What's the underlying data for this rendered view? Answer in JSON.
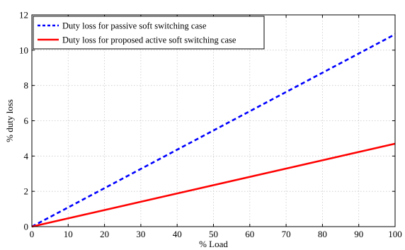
{
  "chart_data": {
    "type": "line",
    "xlabel": "% Load",
    "ylabel": "% duty loss",
    "xlim": [
      0,
      100
    ],
    "ylim": [
      0,
      12
    ],
    "xticks": [
      0,
      10,
      20,
      30,
      40,
      50,
      60,
      70,
      80,
      90,
      100
    ],
    "yticks": [
      0,
      2,
      4,
      6,
      8,
      10,
      12
    ],
    "grid": true,
    "legend_position": "top-left",
    "series": [
      {
        "name": "Duty loss for passive soft switching case",
        "color": "#0000ff",
        "style": "dashed",
        "x": [
          0,
          100
        ],
        "y": [
          0,
          10.9
        ]
      },
      {
        "name": "Duty loss for proposed active soft switching case",
        "color": "#ff0000",
        "style": "solid",
        "x": [
          0,
          100
        ],
        "y": [
          0,
          4.7
        ]
      }
    ]
  }
}
